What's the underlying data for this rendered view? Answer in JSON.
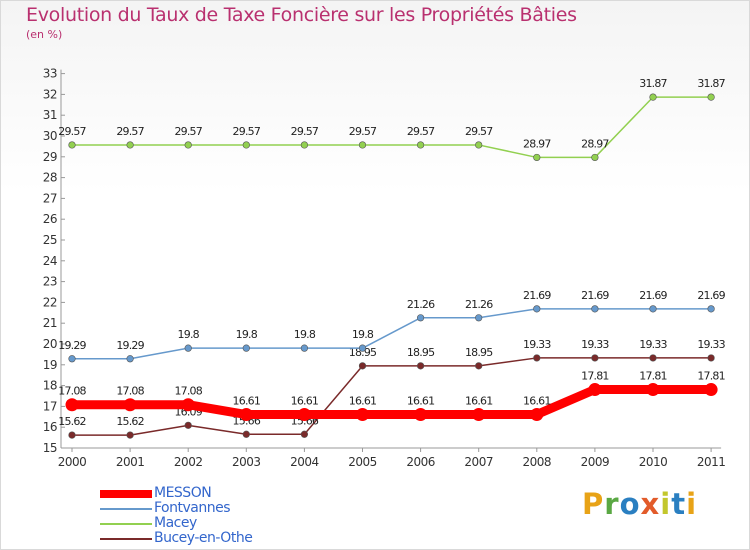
{
  "title": "Evolution du Taux de Taxe Foncière sur les Propriétés Bâties",
  "subtitle": "(en %)",
  "logo": {
    "text": "Proxiti",
    "colors": [
      "#e8a317",
      "#5aa843",
      "#2a7fc1",
      "#e25b2a",
      "#c3c72d",
      "#2a7fc1",
      "#e8a317"
    ]
  },
  "chart_data": {
    "type": "line",
    "title": "Evolution du Taux de Taxe Foncière sur les Propriétés Bâties",
    "ylabel": "(en %)",
    "xlabel": "",
    "x": [
      "2000",
      "2001",
      "2002",
      "2003",
      "2004",
      "2005",
      "2006",
      "2007",
      "2008",
      "2009",
      "2010",
      "2011"
    ],
    "ylim": [
      15,
      33
    ],
    "yticks": [
      "15",
      "16",
      "17",
      "18",
      "19",
      "20",
      "21",
      "22",
      "23",
      "24",
      "25",
      "26",
      "27",
      "28",
      "29",
      "30",
      "31",
      "32",
      "33"
    ],
    "grid": false,
    "legend_position": "bottom-left",
    "series": [
      {
        "name": "Bucey-en-Othe",
        "color": "#7a2a2a",
        "values": [
          15.62,
          15.62,
          16.09,
          15.66,
          15.66,
          18.95,
          18.95,
          18.95,
          19.33,
          19.33,
          19.33,
          19.33
        ],
        "labels": [
          "15.62",
          "15.62",
          "16.09",
          "15.66",
          "15.66",
          "18.95",
          "18.95",
          "18.95",
          "19.33",
          "19.33",
          "19.33",
          "19.33"
        ]
      },
      {
        "name": "Macey",
        "color": "#92d050",
        "values": [
          29.57,
          29.57,
          29.57,
          29.57,
          29.57,
          29.57,
          29.57,
          29.57,
          28.97,
          28.97,
          31.87,
          31.87
        ],
        "labels": [
          "29.57",
          "29.57",
          "29.57",
          "29.57",
          "29.57",
          "29.57",
          "29.57",
          "29.57",
          "28.97",
          "28.97",
          "31.87",
          "31.87"
        ]
      },
      {
        "name": "Fontvannes",
        "color": "#6699cc",
        "values": [
          19.29,
          19.29,
          19.8,
          19.8,
          19.8,
          19.8,
          21.26,
          21.26,
          21.69,
          21.69,
          21.69,
          21.69
        ],
        "labels": [
          "19.29",
          "19.29",
          "19.8",
          "19.8",
          "19.8",
          "19.8",
          "21.26",
          "21.26",
          "21.69",
          "21.69",
          "21.69",
          "21.69"
        ]
      },
      {
        "name": "MESSON",
        "color": "#ff0000",
        "values": [
          17.08,
          17.08,
          17.08,
          16.61,
          16.61,
          16.61,
          16.61,
          16.61,
          16.61,
          17.81,
          17.81,
          17.81
        ],
        "labels": [
          "17.08",
          "17.08",
          "17.08",
          "16.61",
          "16.61",
          "16.61",
          "16.61",
          "16.61",
          "16.61",
          "17.81",
          "17.81",
          "17.81"
        ]
      }
    ],
    "legend": [
      {
        "name": "MESSON",
        "color": "#ff0000",
        "text_color": "#3366cc"
      },
      {
        "name": "Fontvannes",
        "color": "#6699cc",
        "text_color": "#3366cc"
      },
      {
        "name": "Macey",
        "color": "#92d050",
        "text_color": "#3366cc"
      },
      {
        "name": "Bucey-en-Othe",
        "color": "#7a2a2a",
        "text_color": "#3366cc"
      }
    ]
  }
}
